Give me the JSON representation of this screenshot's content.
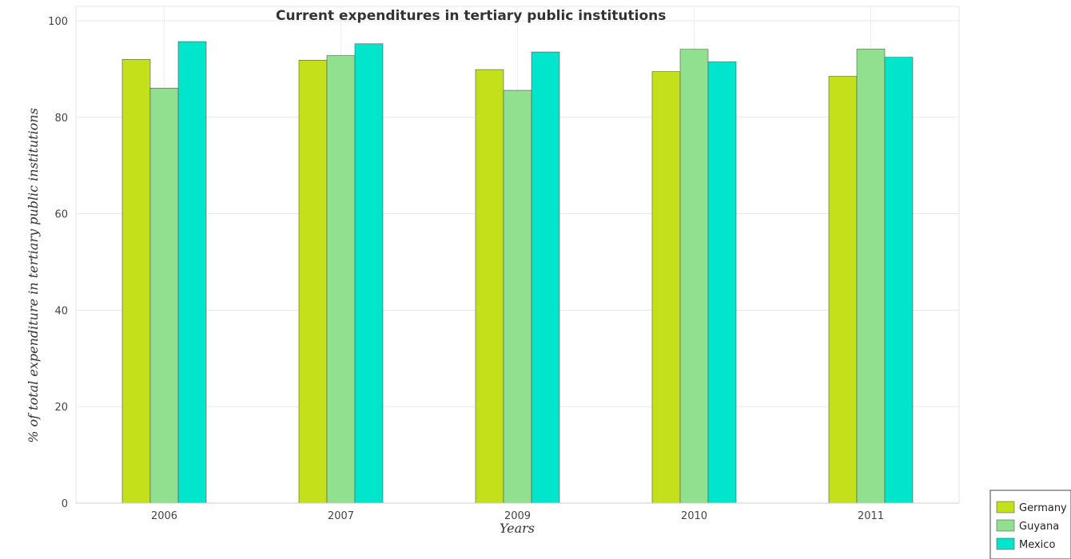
{
  "chart_data": {
    "type": "bar",
    "title": "Current expenditures in tertiary public institutions",
    "xlabel": "Years",
    "ylabel": "% of total expenditure in tertiary public institutions",
    "categories": [
      "2006",
      "2007",
      "2009",
      "2010",
      "2011"
    ],
    "ylim": [
      0,
      100
    ],
    "yticks": [
      0,
      20,
      40,
      60,
      80,
      100
    ],
    "grid": true,
    "legend_position": "bottom-right",
    "series": [
      {
        "name": "Germany",
        "color": "#c4e01a",
        "values": [
          92.0,
          91.85,
          89.9,
          89.47,
          88.5
        ]
      },
      {
        "name": "Guyana",
        "color": "#90e090",
        "values": [
          86.05,
          92.8,
          85.6,
          94.1,
          94.15
        ]
      },
      {
        "name": "Mexico",
        "color": "#00e5cc",
        "values": [
          95.7,
          95.25,
          93.55,
          91.5,
          92.45
        ]
      }
    ]
  }
}
